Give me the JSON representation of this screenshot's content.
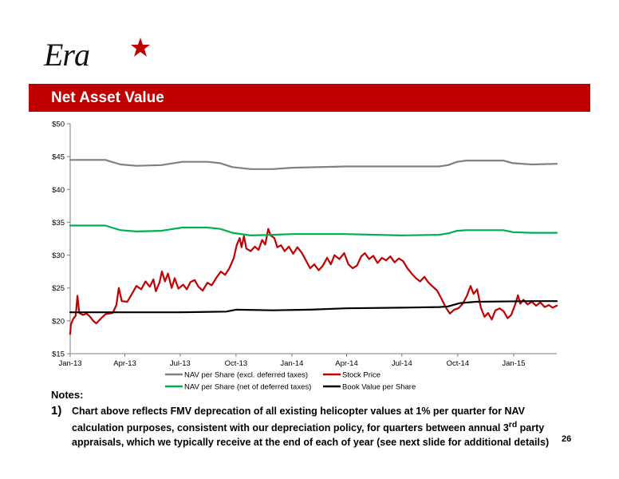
{
  "header": {
    "logo_text": "Era",
    "logo_star_color": "#c00000",
    "title": "Net Asset Value",
    "banner_color": "#c00000"
  },
  "chart_data": {
    "type": "line",
    "title": "",
    "xlabel": "",
    "ylabel": "",
    "x_ticks": [
      "Jan-13",
      "Apr-13",
      "Jul-13",
      "Oct-13",
      "Jan-14",
      "Apr-14",
      "Jul-14",
      "Oct-14",
      "Jan-15"
    ],
    "y_ticks": [
      "$15",
      "$20",
      "$25",
      "$30",
      "$35",
      "$40",
      "$45",
      "$50"
    ],
    "ylim": [
      15,
      50
    ],
    "x_start": "2013-01-01",
    "x_end": "2015-03-13",
    "grid": false,
    "legend_position": "bottom",
    "series": [
      {
        "name": "NAV per Share (excl. deferred taxes)",
        "color": "#808080",
        "points": [
          [
            "2013-01-01",
            44.5
          ],
          [
            "2013-02-28",
            44.5
          ],
          [
            "2013-03-10",
            44.2
          ],
          [
            "2013-03-25",
            43.8
          ],
          [
            "2013-04-20",
            43.6
          ],
          [
            "2013-05-31",
            43.7
          ],
          [
            "2013-06-20",
            44.0
          ],
          [
            "2013-07-05",
            44.2
          ],
          [
            "2013-08-15",
            44.2
          ],
          [
            "2013-09-05",
            44.0
          ],
          [
            "2013-09-25",
            43.4
          ],
          [
            "2013-10-25",
            43.1
          ],
          [
            "2013-11-30",
            43.1
          ],
          [
            "2014-01-01",
            43.3
          ],
          [
            "2014-03-31",
            43.5
          ],
          [
            "2014-06-30",
            43.5
          ],
          [
            "2014-08-31",
            43.5
          ],
          [
            "2014-09-15",
            43.7
          ],
          [
            "2014-09-30",
            44.2
          ],
          [
            "2014-10-15",
            44.4
          ],
          [
            "2014-12-15",
            44.4
          ],
          [
            "2014-12-31",
            44.0
          ],
          [
            "2015-01-31",
            43.8
          ],
          [
            "2015-03-13",
            43.9
          ]
        ]
      },
      {
        "name": "Stock Price",
        "color": "#c00000",
        "points": [
          [
            "2013-01-01",
            18.0
          ],
          [
            "2013-01-02",
            19.4
          ],
          [
            "2013-01-06",
            20.3
          ],
          [
            "2013-01-10",
            20.8
          ],
          [
            "2013-01-13",
            23.8
          ],
          [
            "2013-01-16",
            21.2
          ],
          [
            "2013-01-22",
            20.9
          ],
          [
            "2013-01-28",
            21.1
          ],
          [
            "2013-02-03",
            20.6
          ],
          [
            "2013-02-08",
            20.0
          ],
          [
            "2013-02-13",
            19.6
          ],
          [
            "2013-02-20",
            20.3
          ],
          [
            "2013-02-28",
            21.0
          ],
          [
            "2013-03-12",
            21.2
          ],
          [
            "2013-03-18",
            22.4
          ],
          [
            "2013-03-22",
            25.0
          ],
          [
            "2013-03-27",
            23.0
          ],
          [
            "2013-04-05",
            22.9
          ],
          [
            "2013-04-12",
            24.0
          ],
          [
            "2013-04-20",
            25.3
          ],
          [
            "2013-04-28",
            24.8
          ],
          [
            "2013-05-05",
            26.0
          ],
          [
            "2013-05-12",
            25.2
          ],
          [
            "2013-05-18",
            26.3
          ],
          [
            "2013-05-22",
            24.5
          ],
          [
            "2013-05-28",
            25.8
          ],
          [
            "2013-06-01",
            27.5
          ],
          [
            "2013-06-06",
            26.0
          ],
          [
            "2013-06-11",
            27.2
          ],
          [
            "2013-06-17",
            25.0
          ],
          [
            "2013-06-22",
            26.5
          ],
          [
            "2013-06-28",
            24.9
          ],
          [
            "2013-07-06",
            25.5
          ],
          [
            "2013-07-12",
            24.8
          ],
          [
            "2013-07-18",
            25.9
          ],
          [
            "2013-07-25",
            26.2
          ],
          [
            "2013-07-31",
            25.2
          ],
          [
            "2013-08-07",
            24.6
          ],
          [
            "2013-08-15",
            25.8
          ],
          [
            "2013-08-22",
            25.4
          ],
          [
            "2013-08-30",
            26.6
          ],
          [
            "2013-09-06",
            27.5
          ],
          [
            "2013-09-13",
            27.0
          ],
          [
            "2013-09-20",
            28.0
          ],
          [
            "2013-09-27",
            29.5
          ],
          [
            "2013-10-02",
            31.5
          ],
          [
            "2013-10-07",
            32.6
          ],
          [
            "2013-10-10",
            31.2
          ],
          [
            "2013-10-14",
            32.9
          ],
          [
            "2013-10-18",
            31.0
          ],
          [
            "2013-10-25",
            30.6
          ],
          [
            "2013-11-01",
            31.3
          ],
          [
            "2013-11-07",
            30.8
          ],
          [
            "2013-11-13",
            32.3
          ],
          [
            "2013-11-18",
            31.6
          ],
          [
            "2013-11-23",
            34.0
          ],
          [
            "2013-11-27",
            33.0
          ],
          [
            "2013-12-03",
            32.6
          ],
          [
            "2013-12-08",
            31.2
          ],
          [
            "2013-12-14",
            31.5
          ],
          [
            "2013-12-20",
            30.6
          ],
          [
            "2013-12-27",
            31.3
          ],
          [
            "2014-01-03",
            30.2
          ],
          [
            "2014-01-10",
            31.2
          ],
          [
            "2014-01-17",
            30.4
          ],
          [
            "2014-01-24",
            29.2
          ],
          [
            "2014-01-31",
            28.0
          ],
          [
            "2014-02-07",
            28.6
          ],
          [
            "2014-02-14",
            27.7
          ],
          [
            "2014-02-21",
            28.4
          ],
          [
            "2014-02-28",
            29.6
          ],
          [
            "2014-03-06",
            28.6
          ],
          [
            "2014-03-12",
            30.0
          ],
          [
            "2014-03-20",
            29.4
          ],
          [
            "2014-03-28",
            30.3
          ],
          [
            "2014-04-04",
            28.6
          ],
          [
            "2014-04-11",
            28.0
          ],
          [
            "2014-04-18",
            28.4
          ],
          [
            "2014-04-25",
            29.8
          ],
          [
            "2014-05-01",
            30.3
          ],
          [
            "2014-05-08",
            29.4
          ],
          [
            "2014-05-15",
            29.9
          ],
          [
            "2014-05-22",
            28.8
          ],
          [
            "2014-05-29",
            29.6
          ],
          [
            "2014-06-05",
            29.2
          ],
          [
            "2014-06-12",
            29.8
          ],
          [
            "2014-06-19",
            28.9
          ],
          [
            "2014-06-26",
            29.5
          ],
          [
            "2014-07-03",
            29.1
          ],
          [
            "2014-07-10",
            28.0
          ],
          [
            "2014-07-17",
            27.2
          ],
          [
            "2014-07-24",
            26.5
          ],
          [
            "2014-07-31",
            26.0
          ],
          [
            "2014-08-07",
            26.7
          ],
          [
            "2014-08-14",
            25.8
          ],
          [
            "2014-08-21",
            25.2
          ],
          [
            "2014-08-28",
            24.6
          ],
          [
            "2014-09-04",
            23.4
          ],
          [
            "2014-09-11",
            22.1
          ],
          [
            "2014-09-18",
            21.1
          ],
          [
            "2014-09-25",
            21.7
          ],
          [
            "2014-10-02",
            21.9
          ],
          [
            "2014-10-09",
            22.6
          ],
          [
            "2014-10-16",
            23.8
          ],
          [
            "2014-10-22",
            25.3
          ],
          [
            "2014-10-27",
            24.1
          ],
          [
            "2014-11-02",
            24.8
          ],
          [
            "2014-11-08",
            22.0
          ],
          [
            "2014-11-14",
            20.6
          ],
          [
            "2014-11-20",
            21.2
          ],
          [
            "2014-11-26",
            20.2
          ],
          [
            "2014-12-02",
            21.6
          ],
          [
            "2014-12-09",
            21.9
          ],
          [
            "2014-12-16",
            21.4
          ],
          [
            "2014-12-22",
            20.4
          ],
          [
            "2014-12-28",
            20.9
          ],
          [
            "2015-01-04",
            22.6
          ],
          [
            "2015-01-08",
            23.9
          ],
          [
            "2015-01-12",
            22.6
          ],
          [
            "2015-01-17",
            23.2
          ],
          [
            "2015-01-24",
            22.5
          ],
          [
            "2015-01-31",
            22.9
          ],
          [
            "2015-02-07",
            22.3
          ],
          [
            "2015-02-14",
            22.8
          ],
          [
            "2015-02-21",
            22.1
          ],
          [
            "2015-02-28",
            22.4
          ],
          [
            "2015-03-06",
            22.0
          ],
          [
            "2015-03-13",
            22.3
          ]
        ]
      },
      {
        "name": "NAV per Share (net of deferred taxes)",
        "color": "#00b050",
        "points": [
          [
            "2013-01-01",
            34.5
          ],
          [
            "2013-02-28",
            34.5
          ],
          [
            "2013-03-10",
            34.2
          ],
          [
            "2013-03-25",
            33.8
          ],
          [
            "2013-04-20",
            33.6
          ],
          [
            "2013-05-31",
            33.7
          ],
          [
            "2013-06-20",
            34.0
          ],
          [
            "2013-07-05",
            34.2
          ],
          [
            "2013-08-15",
            34.2
          ],
          [
            "2013-09-05",
            34.0
          ],
          [
            "2013-09-25",
            33.4
          ],
          [
            "2013-10-25",
            33.0
          ],
          [
            "2013-11-30",
            33.1
          ],
          [
            "2014-01-01",
            33.2
          ],
          [
            "2014-03-31",
            33.2
          ],
          [
            "2014-06-30",
            33.0
          ],
          [
            "2014-08-31",
            33.1
          ],
          [
            "2014-09-15",
            33.3
          ],
          [
            "2014-09-30",
            33.7
          ],
          [
            "2014-10-15",
            33.8
          ],
          [
            "2014-12-15",
            33.8
          ],
          [
            "2014-12-31",
            33.5
          ],
          [
            "2015-01-31",
            33.4
          ],
          [
            "2015-03-13",
            33.4
          ]
        ]
      },
      {
        "name": "Book Value per Share",
        "color": "#000000",
        "points": [
          [
            "2013-01-01",
            21.3
          ],
          [
            "2013-06-30",
            21.3
          ],
          [
            "2013-09-15",
            21.4
          ],
          [
            "2013-10-01",
            21.7
          ],
          [
            "2013-11-30",
            21.6
          ],
          [
            "2014-01-31",
            21.7
          ],
          [
            "2014-03-31",
            21.9
          ],
          [
            "2014-06-30",
            22.0
          ],
          [
            "2014-09-01",
            22.1
          ],
          [
            "2014-09-15",
            22.2
          ],
          [
            "2014-10-05",
            22.7
          ],
          [
            "2014-10-31",
            22.9
          ],
          [
            "2015-01-31",
            23.0
          ],
          [
            "2015-03-13",
            23.0
          ]
        ]
      }
    ]
  },
  "legend": [
    "NAV per Share (excl. deferred taxes)",
    "Stock Price",
    "NAV per Share (net of deferred taxes)",
    "Book Value per Share"
  ],
  "notes": {
    "heading": "Notes:",
    "items": [
      {
        "number": "1)",
        "text_before_sup": "Chart above reflects FMV deprecation of all existing helicopter values at 1% per quarter for NAV calculation purposes, consistent with our depreciation policy, for quarters between annual 3",
        "sup": "rd",
        "text_after_sup": " party appraisals, which we typically receive at the end of each of year (see next slide for additional details)"
      }
    ]
  },
  "page_number": "26"
}
